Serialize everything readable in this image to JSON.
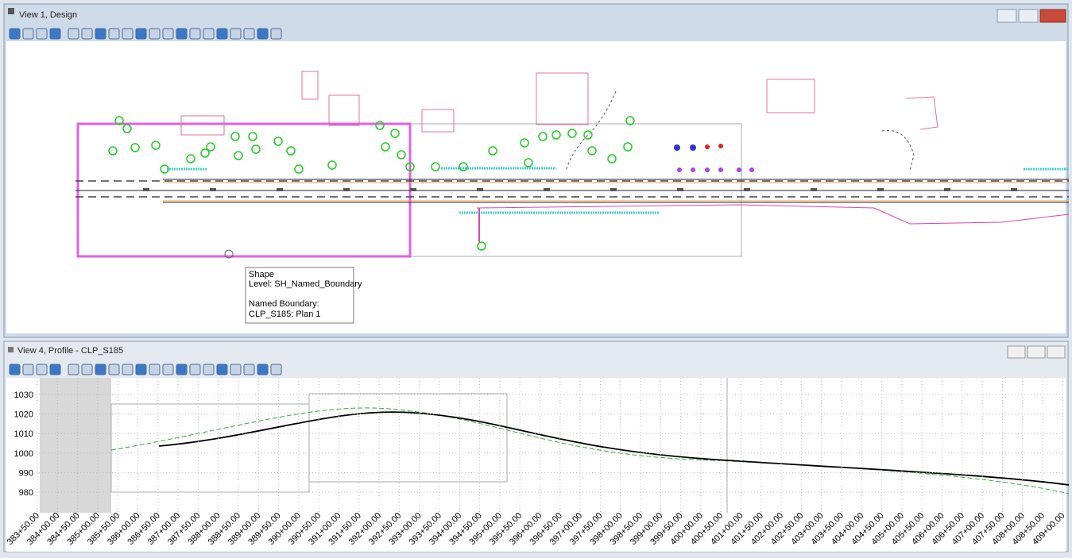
{
  "top_view": {
    "title": "View 1, Design",
    "tooltip": {
      "line1": "Shape",
      "line2": "Level: SH_Named_Boundary",
      "line3": "Named Boundary:",
      "line4": "CLP_S185: Plan 1"
    }
  },
  "profile_view": {
    "title": "View 4, Profile - CLP_S185",
    "elevations": [
      "1030",
      "1020",
      "1010",
      "1000",
      "990",
      "980"
    ],
    "stations": [
      "383+50.00",
      "384+00.00",
      "384+50.00",
      "385+00.00",
      "385+50.00",
      "386+00.00",
      "386+50.00",
      "387+00.00",
      "387+50.00",
      "388+00.00",
      "388+50.00",
      "389+00.00",
      "389+50.00",
      "390+00.00",
      "390+50.00",
      "391+00.00",
      "391+50.00",
      "392+00.00",
      "392+50.00",
      "393+00.00",
      "393+50.00",
      "394+00.00",
      "394+50.00",
      "395+00.00",
      "395+50.00",
      "396+00.00",
      "396+50.00",
      "397+00.00",
      "397+50.00",
      "398+00.00",
      "398+50.00",
      "399+00.00",
      "399+50.00",
      "400+00.00",
      "400+50.00",
      "401+00.00",
      "401+50.00",
      "402+00.00",
      "402+50.00",
      "403+00.00",
      "403+50.00",
      "404+00.00",
      "404+50.00",
      "405+00.00",
      "405+50.00",
      "406+00.00",
      "406+50.00",
      "407+00.00",
      "407+50.00",
      "408+00.00",
      "408+50.00",
      "409+00.00"
    ]
  }
}
